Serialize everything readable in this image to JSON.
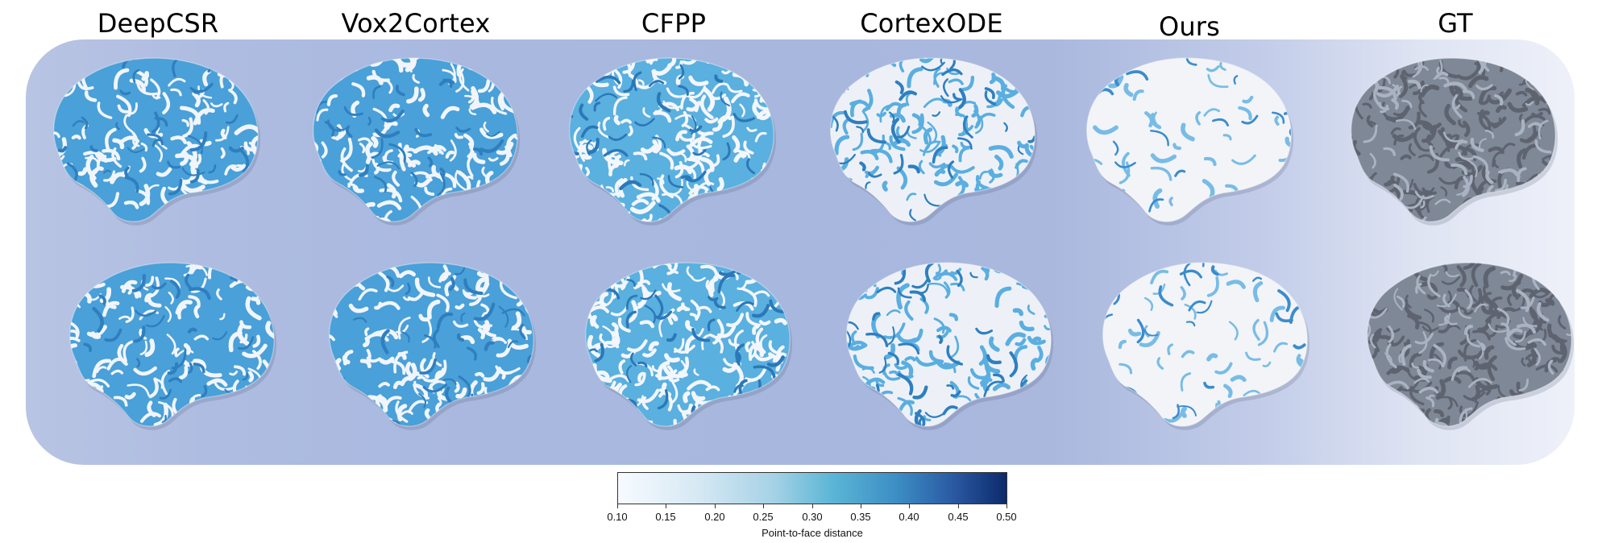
{
  "columns": [
    {
      "title": "DeepCSR",
      "style": "heavy"
    },
    {
      "title": "Vox2Cortex",
      "style": "heavy"
    },
    {
      "title": "CFPP",
      "style": "medium"
    },
    {
      "title": "CortexODE",
      "style": "light"
    },
    {
      "title": "Ours",
      "style": "minimal"
    },
    {
      "title": "GT",
      "style": "gray"
    }
  ],
  "colorbar": {
    "label": "Point-to-face distance",
    "ticks": [
      "0.10",
      "0.15",
      "0.20",
      "0.25",
      "0.30",
      "0.35",
      "0.40",
      "0.45",
      "0.50"
    ],
    "colors": [
      "#f7fbff",
      "#d7e9f4",
      "#a6d2e6",
      "#5bb6d6",
      "#3c8dc4",
      "#2b5aa3",
      "#0c2a6b"
    ]
  },
  "colors": {
    "panel": "#a9b8df",
    "surface_heavy": "#4a9fd6",
    "surface_white": "#f4f6f9",
    "gt_surface": "#7f8897"
  }
}
